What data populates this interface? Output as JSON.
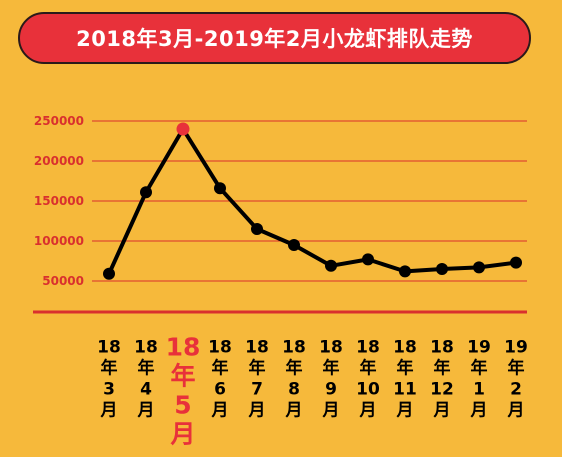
{
  "title": "2018年3月-2019年2月小龙虾排队走势",
  "colors": {
    "background": "#F6B93B",
    "title_pill": "#E8313A",
    "grid": "#D9302E",
    "line": "#000000",
    "peak": "#E8313A",
    "tick_label": "#D9302E",
    "x_label": "#000000"
  },
  "chart_data": {
    "type": "line",
    "title": "2018年3月-2019年2月小龙虾排队走势",
    "xlabel": "",
    "ylabel": "",
    "ylim": [
      0,
      250000
    ],
    "yticks": [
      50000,
      100000,
      150000,
      200000,
      250000
    ],
    "grid": true,
    "legend": "none",
    "categories": [
      [
        "18",
        "年",
        "3",
        "月"
      ],
      [
        "18",
        "年",
        "4",
        "月"
      ],
      [
        "18",
        "年",
        "5",
        "月"
      ],
      [
        "18",
        "年",
        "6",
        "月"
      ],
      [
        "18",
        "年",
        "7",
        "月"
      ],
      [
        "18",
        "年",
        "8",
        "月"
      ],
      [
        "18",
        "年",
        "9",
        "月"
      ],
      [
        "18",
        "年",
        "10",
        "月"
      ],
      [
        "18",
        "年",
        "11",
        "月"
      ],
      [
        "18",
        "年",
        "12",
        "月"
      ],
      [
        "19",
        "年",
        "1",
        "月"
      ],
      [
        "19",
        "年",
        "2",
        "月"
      ]
    ],
    "values": [
      59000,
      161000,
      240000,
      166000,
      115000,
      95000,
      69000,
      77000,
      62000,
      65000,
      67000,
      73000
    ],
    "highlight_index": 2
  }
}
